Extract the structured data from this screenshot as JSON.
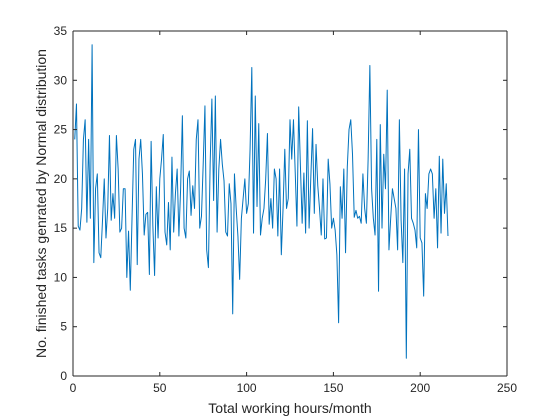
{
  "chart_data": {
    "type": "line",
    "title": "",
    "xlabel": "Total working hours/month",
    "ylabel": "No. finished tasks genrated by Normal distribution",
    "xlim": [
      0,
      250
    ],
    "ylim": [
      0,
      35
    ],
    "xticks": [
      0,
      50,
      100,
      150,
      200,
      250
    ],
    "yticks": [
      0,
      5,
      10,
      15,
      20,
      25,
      30,
      35
    ],
    "grid": false,
    "box": true,
    "line_color": "#0072BD",
    "axis_color": "#262626",
    "background": "#ffffff",
    "series": [
      {
        "x": [
          1,
          2,
          3,
          4,
          5,
          6,
          7,
          8,
          9,
          10,
          11,
          12,
          13,
          14,
          15,
          16,
          17,
          18,
          19,
          20,
          21,
          22,
          23,
          24,
          25,
          26,
          27,
          28,
          29,
          30,
          31,
          32,
          33,
          34,
          35,
          36,
          37,
          38,
          39,
          40,
          41,
          42,
          43,
          44,
          45,
          46,
          47,
          48,
          49,
          50,
          51,
          52,
          53,
          54,
          55,
          56,
          57,
          58,
          59,
          60,
          61,
          62,
          63,
          64,
          65,
          66,
          67,
          68,
          69,
          70,
          71,
          72,
          73,
          74,
          75,
          76,
          77,
          78,
          79,
          80,
          81,
          82,
          83,
          84,
          85,
          86,
          87,
          88,
          89,
          90,
          91,
          92,
          93,
          94,
          95,
          96,
          97,
          98,
          99,
          100,
          101,
          102,
          103,
          104,
          105,
          106,
          107,
          108,
          109,
          110,
          111,
          112,
          113,
          114,
          115,
          116,
          117,
          118,
          119,
          120,
          121,
          122,
          123,
          124,
          125,
          126,
          127,
          128,
          129,
          130,
          131,
          132,
          133,
          134,
          135,
          136,
          137,
          138,
          139,
          140,
          141,
          142,
          143,
          144,
          145,
          146,
          147,
          148,
          149,
          150,
          151,
          152,
          153,
          154,
          155,
          156,
          157,
          158,
          159,
          160,
          161,
          162,
          163,
          164,
          165,
          166,
          167,
          168,
          169,
          170,
          171,
          172,
          173,
          174,
          175,
          176,
          177,
          178,
          179,
          180,
          181,
          182,
          183,
          184,
          185,
          186,
          187,
          188,
          189,
          190,
          191,
          192,
          193,
          194,
          195,
          196,
          197,
          198,
          199,
          200,
          201,
          202,
          203,
          204,
          205,
          206,
          207,
          208,
          209,
          210,
          211,
          212,
          213,
          214,
          215,
          216
        ],
        "y": [
          24,
          27.6,
          15.2,
          14.8,
          17,
          24,
          26,
          15.6,
          24,
          16,
          33.6,
          11.5,
          19,
          20.5,
          12.5,
          12,
          15.8,
          20,
          14,
          17,
          24.4,
          15.8,
          18.5,
          16,
          24.4,
          21,
          14.6,
          15,
          19,
          19,
          10,
          14.7,
          8.7,
          16,
          23,
          24,
          11.3,
          22,
          24,
          20.5,
          14.3,
          16.4,
          16.6,
          10.3,
          23.8,
          15.2,
          10.2,
          19.2,
          14,
          20,
          22,
          24.5,
          14.6,
          13.3,
          17.6,
          12.8,
          22.2,
          14.6,
          18.5,
          21,
          14.2,
          19,
          26.4,
          15,
          14,
          20,
          20.8,
          16.3,
          19.3,
          17,
          24,
          26,
          15,
          16.2,
          21.5,
          27.4,
          12.8,
          11,
          21.5,
          28.1,
          17.8,
          28.4,
          14.6,
          21,
          24,
          21.5,
          19.8,
          14.6,
          14.2,
          19.5,
          17.5,
          6.3,
          20.5,
          17,
          14.2,
          9.8,
          16,
          18,
          20,
          16.5,
          17.5,
          23,
          31.3,
          14.5,
          28.4,
          17.2,
          25.6,
          14.3,
          16,
          17,
          20,
          24.6,
          15.4,
          18,
          15,
          21,
          20,
          14.2,
          21,
          12.3,
          17,
          23,
          17,
          18,
          26,
          22,
          26,
          20.7,
          15.2,
          27.3,
          21.3,
          15.5,
          20.6,
          14.5,
          25.9,
          15,
          20.2,
          25.1,
          16.5,
          23.5,
          19.3,
          17,
          14.3,
          20,
          13.9,
          14,
          22,
          19.5,
          15,
          16,
          14.8,
          12.3,
          5.4,
          19.2,
          16,
          21,
          12.5,
          21.2,
          25,
          26,
          22.5,
          16.1,
          16.8,
          16,
          16.2,
          15.5,
          20.5,
          17,
          15.5,
          22,
          31.5,
          19,
          16,
          14.3,
          24,
          8.6,
          25.5,
          15,
          22.5,
          19,
          29,
          12.8,
          16,
          19,
          18,
          17,
          12.8,
          26,
          15.8,
          11.5,
          21,
          1.8,
          20.5,
          23,
          16,
          15.5,
          14.8,
          13,
          25,
          14,
          13.5,
          8.1,
          18.5,
          17,
          20.5,
          21,
          20.5,
          16,
          19,
          13,
          22.3,
          14.5,
          22,
          16.5,
          19.5,
          14.2
        ]
      }
    ]
  }
}
